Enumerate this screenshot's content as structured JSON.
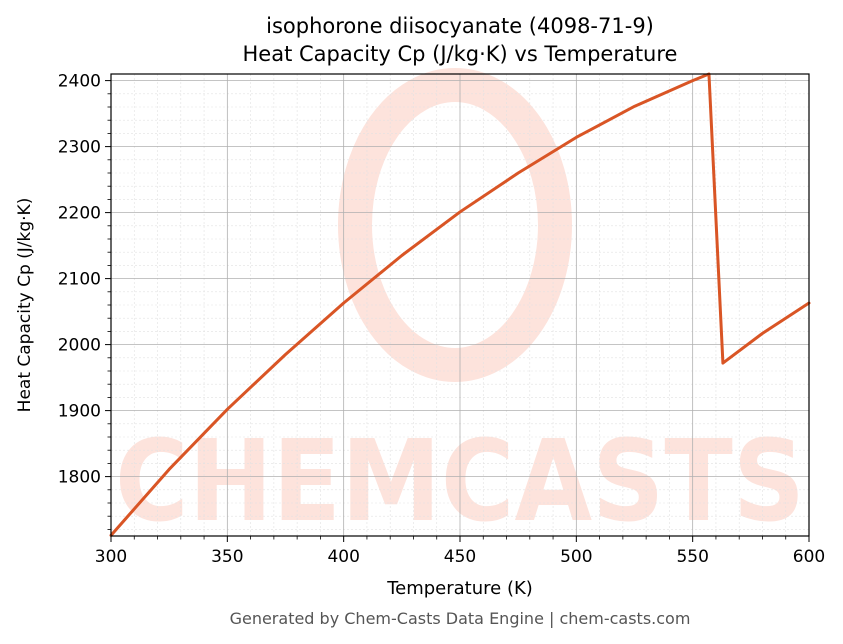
{
  "chart_data": {
    "type": "line",
    "title_line1": "isophorone diisocyanate (4098-71-9)",
    "title_line2": "Heat Capacity Cp (J/kg·K) vs Temperature",
    "xlabel": "Temperature (K)",
    "ylabel": "Heat Capacity Cp (J/kg·K)",
    "xlim": [
      300,
      600
    ],
    "ylim": [
      1710,
      2410
    ],
    "x_ticks": [
      300,
      350,
      400,
      450,
      500,
      550,
      600
    ],
    "y_ticks": [
      1800,
      1900,
      2000,
      2100,
      2200,
      2300,
      2400
    ],
    "grid": true,
    "series": [
      {
        "color": "#d95525",
        "x": [
          300,
          325,
          350,
          375,
          400,
          425,
          450,
          475,
          500,
          525,
          550,
          557,
          563,
          580,
          600
        ],
        "y": [
          1711,
          1811,
          1902,
          1985,
          2063,
          2135,
          2201,
          2260,
          2314,
          2361,
          2400,
          2410,
          1972,
          2017,
          2063
        ]
      }
    ]
  },
  "watermark": {
    "text": "CHEMCASTS",
    "color": "#fde3dc"
  },
  "footer": {
    "text": "Generated by Chem-Casts Data Engine | chem-casts.com"
  }
}
